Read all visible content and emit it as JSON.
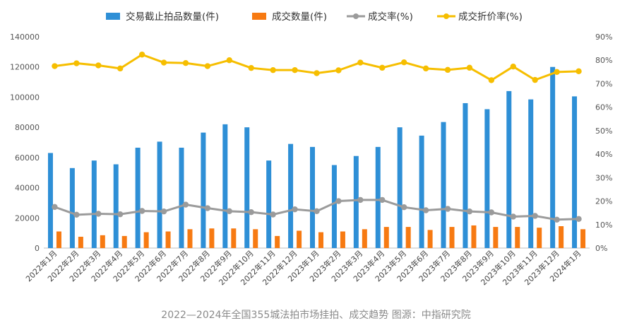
{
  "caption": "2022—2024年全国355城法拍市场挂拍、成交趋势 图源：中指研究院",
  "chart_data": {
    "type": "bar",
    "categories": [
      "2022年1月",
      "2022年2月",
      "2022年3月",
      "2022年4月",
      "2022年5月",
      "2022年6月",
      "2022年7月",
      "2022年8月",
      "2022年9月",
      "2022年10月",
      "2022年11月",
      "2022年12月",
      "2023年1月",
      "2023年2月",
      "2023年3月",
      "2023年4月",
      "2023年5月",
      "2023年6月",
      "2023年7月",
      "2023年8月",
      "2023年9月",
      "2023年10月",
      "2023年11月",
      "2023年12月",
      "2024年1月"
    ],
    "y_left": {
      "ylim": [
        0,
        140000
      ],
      "ticks": [
        "0",
        "20000",
        "40000",
        "60000",
        "80000",
        "100000",
        "120000",
        "140000"
      ]
    },
    "y_right": {
      "ylim": [
        0,
        90
      ],
      "ticks": [
        "0%",
        "10%",
        "20%",
        "30%",
        "40%",
        "50%",
        "60%",
        "70%",
        "80%",
        "90%"
      ]
    },
    "grid": false,
    "legend_position": "top",
    "series": [
      {
        "name": "交易截止拍品数量(件)",
        "kind": "bar",
        "axis": "left",
        "color": "#2e8fd6",
        "values": [
          63000,
          53000,
          58000,
          55500,
          66500,
          70500,
          66500,
          76500,
          82000,
          80000,
          58000,
          69000,
          67000,
          55000,
          61000,
          67000,
          80000,
          74500,
          83500,
          96000,
          92000,
          104000,
          98500,
          120000,
          100500
        ]
      },
      {
        "name": "成交数量(件)",
        "kind": "bar",
        "axis": "left",
        "color": "#f77a12",
        "values": [
          11000,
          7500,
          8500,
          8000,
          10500,
          11000,
          12500,
          13000,
          13000,
          12500,
          8000,
          11500,
          10500,
          11000,
          12500,
          14000,
          14000,
          12000,
          14000,
          15000,
          14000,
          14000,
          13500,
          14500,
          12500
        ]
      },
      {
        "name": "成交率(%)",
        "kind": "line",
        "axis": "right",
        "color": "#9b9b9b",
        "values": [
          17.5,
          14.2,
          14.6,
          14.4,
          15.8,
          15.6,
          18.5,
          17,
          15.7,
          15.3,
          14.3,
          16.5,
          15.7,
          20,
          20.5,
          20.5,
          17.4,
          16.1,
          16.7,
          15.6,
          15.2,
          13.4,
          13.7,
          12.1,
          12.4
        ]
      },
      {
        "name": "成交折价率(%)",
        "kind": "line",
        "axis": "right",
        "color": "#f6be00",
        "values": [
          77.5,
          78.7,
          77.8,
          76.5,
          82.4,
          79,
          78.8,
          77.5,
          80,
          76.7,
          75.8,
          75.8,
          74.5,
          75.7,
          79,
          76.8,
          79.1,
          76.5,
          75.9,
          76.8,
          71.5,
          77.3,
          71.6,
          75,
          75.3
        ]
      }
    ]
  }
}
